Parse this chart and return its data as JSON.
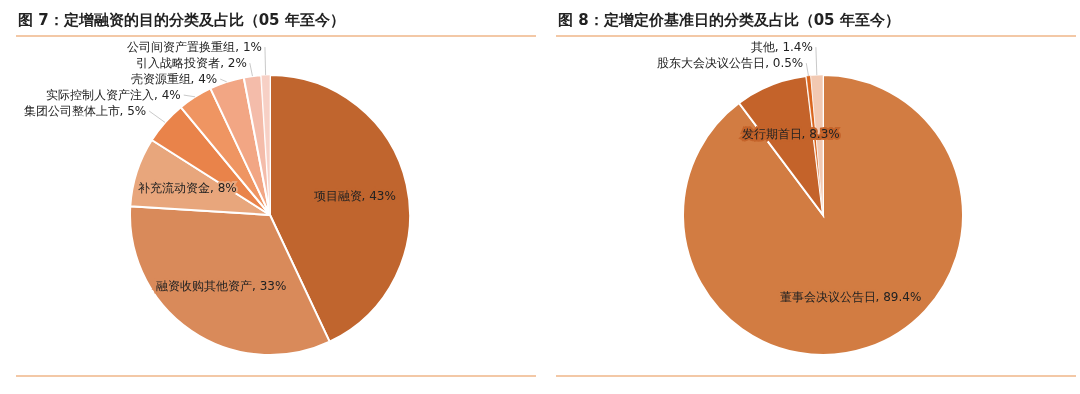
{
  "chart_data": [
    {
      "type": "pie",
      "title": "图 7：定增融资的目的分类及占比（05 年至今）",
      "categories": [
        "项目融资",
        "融资收购其他资产",
        "补充流动资金",
        "集团公司整体上市",
        "实际控制人资产注入",
        "壳资源重组",
        "引入战略投资者",
        "公司间资产置换重组"
      ],
      "values": [
        43,
        33,
        8,
        5,
        4,
        4,
        2,
        1
      ],
      "value_labels": [
        "43%",
        "33%",
        "8%",
        "5%",
        "4%",
        "4%",
        "2%",
        "1%"
      ],
      "colors": [
        "#c0652e",
        "#d98a5a",
        "#e8a67c",
        "#e9834a",
        "#ef9562",
        "#f2a684",
        "#f4bcaa",
        "#f7d0c5"
      ]
    },
    {
      "type": "pie",
      "title": "图 8：定增定价基准日的分类及占比（05 年至今）",
      "categories": [
        "董事会决议公告日",
        "发行期首日",
        "股东大会决议公告日",
        "其他"
      ],
      "values": [
        89.4,
        8.3,
        0.5,
        1.4
      ],
      "value_labels": [
        "89.4%",
        "8.3%",
        "0.5%",
        "1.4%"
      ],
      "colors": [
        "#d27c42",
        "#c4632a",
        "#d9651e",
        "#f2c9b2"
      ]
    }
  ]
}
